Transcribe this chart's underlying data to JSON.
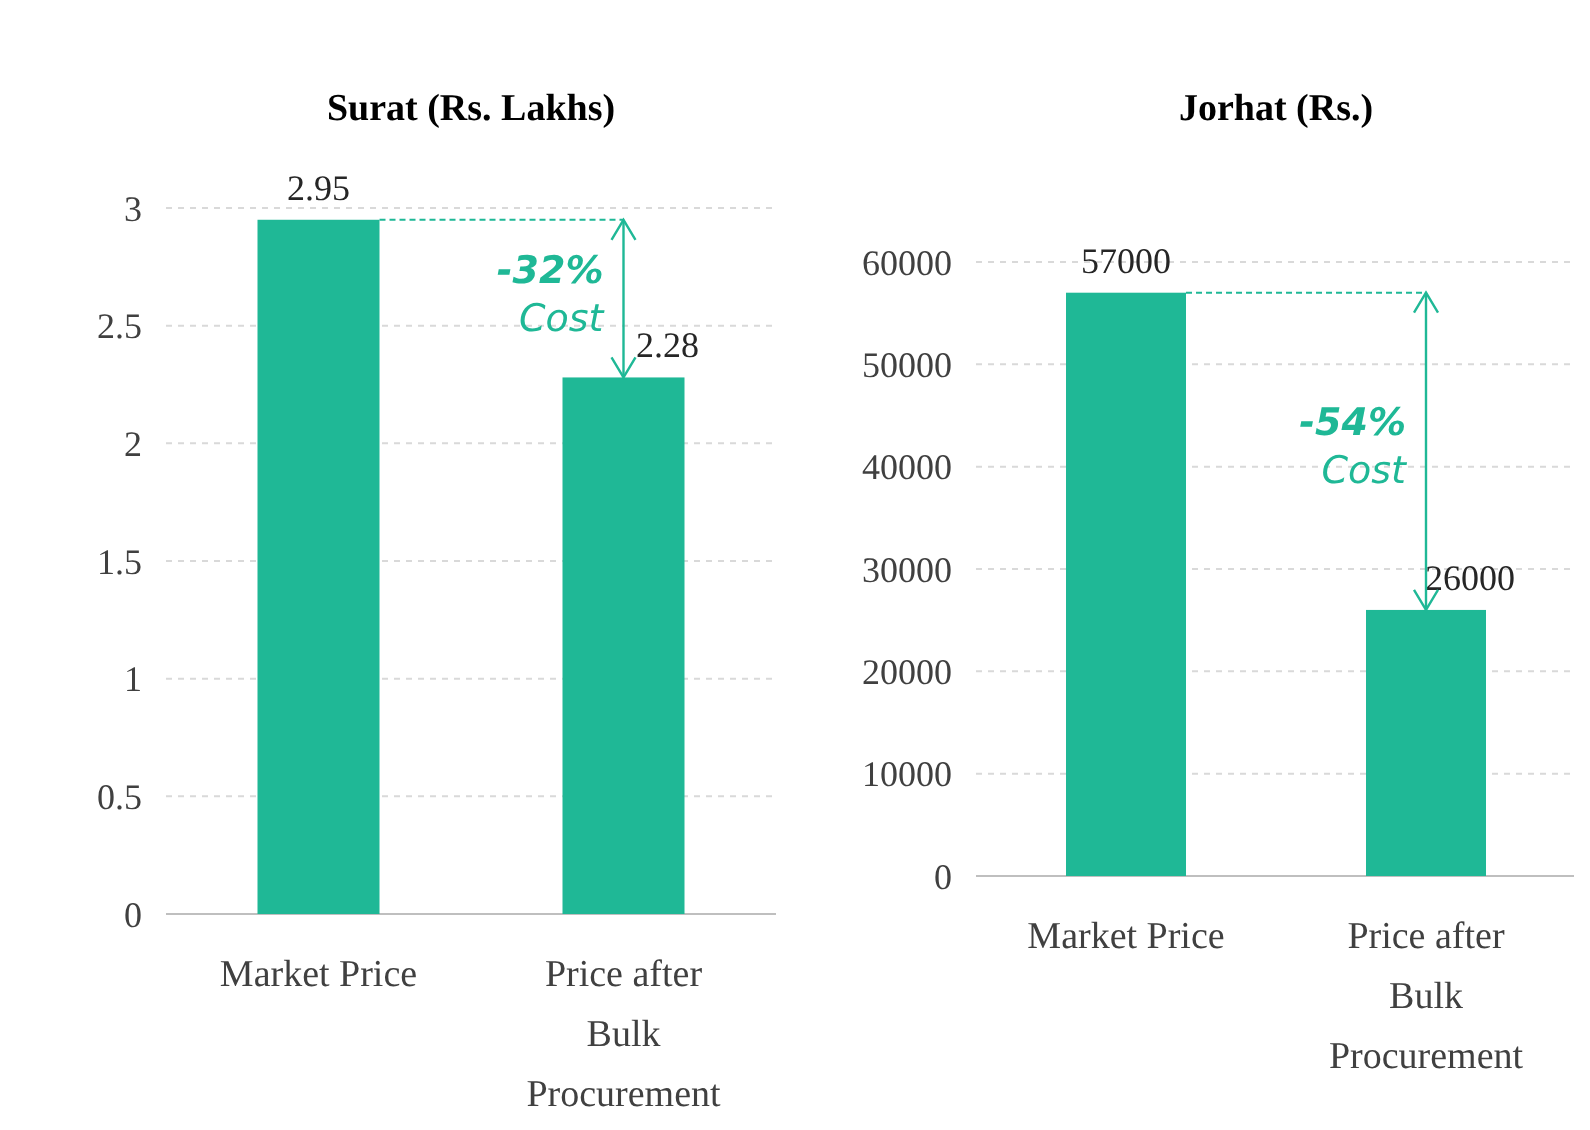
{
  "chart_data": [
    {
      "type": "bar",
      "title": "Surat (Rs. Lakhs)",
      "categories": [
        "Market Price",
        "Price after Bulk Procurement"
      ],
      "values": [
        2.95,
        2.28
      ],
      "color": "#1fb896",
      "ylim": [
        0,
        3
      ],
      "yticks": [
        0,
        0.5,
        1,
        1.5,
        2,
        2.5,
        3
      ],
      "grid": "y",
      "data_labels": true,
      "annotations": [
        {
          "text": "-32% Cost",
          "x": "Price after Bulk Procurement",
          "y": 2.28
        }
      ]
    },
    {
      "type": "bar",
      "title": "Jorhat (Rs.)",
      "categories": [
        "Market Price",
        "Price after Bulk Procurement"
      ],
      "values": [
        57000,
        26000
      ],
      "color": "#1fb896",
      "ylim": [
        0,
        60000
      ],
      "yticks": [
        0,
        10000,
        20000,
        30000,
        40000,
        50000,
        60000
      ],
      "grid": "y",
      "data_labels": true,
      "annotations": [
        "-54% Cost"
      ]
    }
  ]
}
